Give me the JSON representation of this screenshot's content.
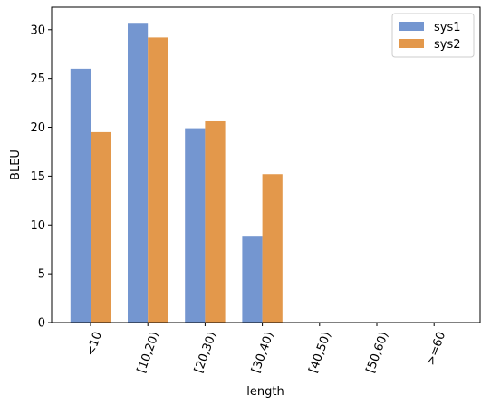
{
  "chart_data": {
    "type": "bar",
    "categories": [
      "<10",
      "[10,20)",
      "[20,30)",
      "[30,40)",
      "[40,50)",
      "[50,60)",
      ">=60"
    ],
    "series": [
      {
        "name": "sys1",
        "values": [
          26.0,
          30.7,
          19.9,
          8.8,
          0,
          0,
          0
        ],
        "color": "#7496d0"
      },
      {
        "name": "sys2",
        "values": [
          19.5,
          29.2,
          20.7,
          15.2,
          0,
          0,
          0
        ],
        "color": "#e3984b"
      }
    ],
    "xlabel": "length",
    "ylabel": "BLEU",
    "ylim": [
      0,
      32.3
    ],
    "yticks": [
      0,
      5,
      10,
      15,
      20,
      25,
      30
    ],
    "grid": false,
    "legend": "top-right",
    "xtick_rotation": 70
  }
}
